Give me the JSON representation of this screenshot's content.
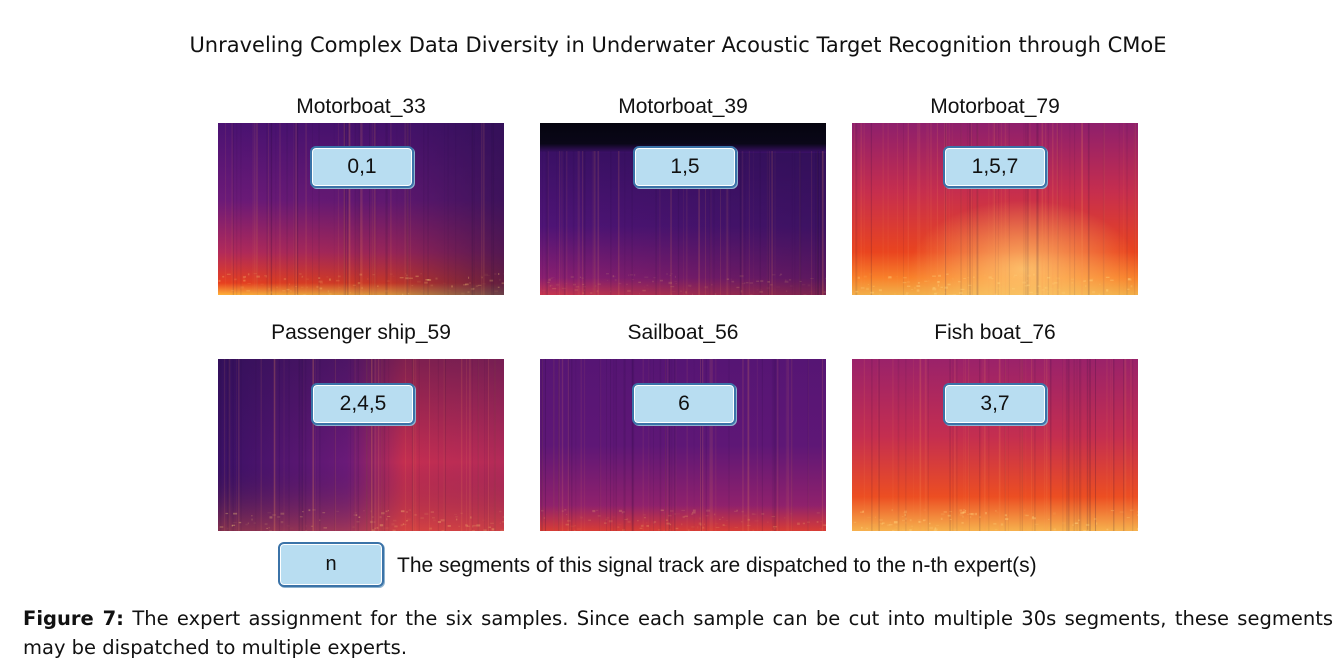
{
  "header": {
    "running_title": "Unraveling Complex Data Diversity in Underwater Acoustic Target Recognition through CMoE"
  },
  "panels": [
    {
      "title": "Motorboat_33",
      "experts": "0,1"
    },
    {
      "title": "Motorboat_39",
      "experts": "1,5"
    },
    {
      "title": "Motorboat_79",
      "experts": "1,5,7"
    },
    {
      "title": "Passenger ship_59",
      "experts": "2,4,5"
    },
    {
      "title": "Sailboat_56",
      "experts": "6"
    },
    {
      "title": "Fish boat_76",
      "experts": "3,7"
    }
  ],
  "legend": {
    "box_label": "n",
    "description": "The segments of this signal track are dispatched to the n-th expert(s)"
  },
  "caption": {
    "label": "Figure 7:",
    "text": "The expert assignment for the six samples. Since each sample can be cut into multiple 30s segments, these segments may be dispatched to multiple experts."
  },
  "colors": {
    "tag_fill": "#b8ddf1",
    "tag_border": "#3b73a8",
    "spectrogram_low": "#2a0f4e",
    "spectrogram_mid": "#8e1f6c",
    "spectrogram_high": "#f34a1e"
  }
}
